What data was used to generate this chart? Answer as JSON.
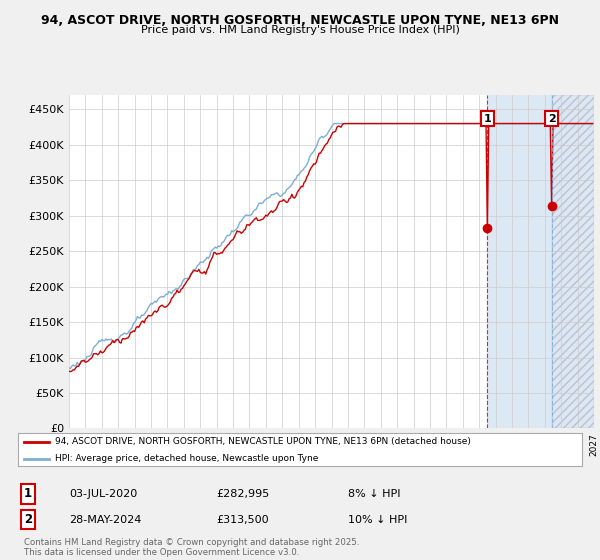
{
  "title_line1": "94, ASCOT DRIVE, NORTH GOSFORTH, NEWCASTLE UPON TYNE, NE13 6PN",
  "title_line2": "Price paid vs. HM Land Registry's House Price Index (HPI)",
  "ylim": [
    0,
    470000
  ],
  "yticks": [
    0,
    50000,
    100000,
    150000,
    200000,
    250000,
    300000,
    350000,
    400000,
    450000
  ],
  "ytick_labels": [
    "£0",
    "£50K",
    "£100K",
    "£150K",
    "£200K",
    "£250K",
    "£300K",
    "£350K",
    "£400K",
    "£450K"
  ],
  "background_color": "#f0f0f0",
  "plot_background": "#ffffff",
  "grid_color": "#cccccc",
  "hpi_color": "#7daed4",
  "price_color": "#cc0000",
  "shade_color": "#dde8f5",
  "hatch_color": "#c8d8e8",
  "legend_label_red": "94, ASCOT DRIVE, NORTH GOSFORTH, NEWCASTLE UPON TYNE, NE13 6PN (detached house)",
  "legend_label_blue": "HPI: Average price, detached house, Newcastle upon Tyne",
  "marker1_date": "03-JUL-2020",
  "marker1_price": "£282,995",
  "marker1_hpi": "8% ↓ HPI",
  "marker2_date": "28-MAY-2024",
  "marker2_price": "£313,500",
  "marker2_hpi": "10% ↓ HPI",
  "footer": "Contains HM Land Registry data © Crown copyright and database right 2025.\nThis data is licensed under the Open Government Licence v3.0.",
  "xmin": 1995,
  "xmax": 2027,
  "sale1_x": 2020.5,
  "sale1_y": 282995,
  "sale2_x": 2024.42,
  "sale2_y": 313500
}
